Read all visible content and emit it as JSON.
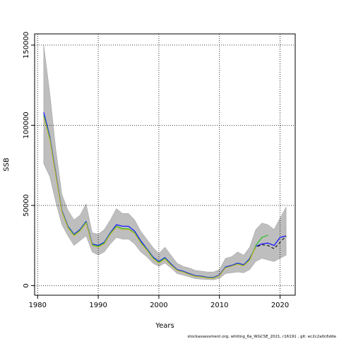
{
  "chart_data": {
    "type": "line",
    "xlabel": "Years",
    "ylabel": "SSB",
    "xlim": [
      1979.5,
      2022.5
    ],
    "ylim": [
      -6000,
      157000
    ],
    "x_ticks": [
      1980,
      1990,
      2000,
      2010,
      2020
    ],
    "y_ticks": [
      0,
      50000,
      100000,
      150000
    ],
    "x_tick_labels": [
      "1980",
      "1990",
      "2000",
      "2010",
      "2020"
    ],
    "y_tick_labels": [
      "0",
      "50000",
      "100000",
      "150000"
    ],
    "grid": true,
    "legend": "none",
    "footer": "stockassessment.org, whiting_6a_WGCSE_2021, r16191 , git: ec2c2a0c6dde",
    "band": {
      "x": [
        1981,
        1982,
        1983,
        1984,
        1985,
        1986,
        1987,
        1988,
        1989,
        1990,
        1991,
        1992,
        1993,
        1994,
        1995,
        1996,
        1997,
        1998,
        1999,
        2000,
        2001,
        2002,
        2003,
        2004,
        2005,
        2006,
        2007,
        2008,
        2009,
        2010,
        2011,
        2012,
        2013,
        2014,
        2015,
        2016,
        2017,
        2018,
        2019,
        2020,
        2021
      ],
      "upper": [
        150000,
        120000,
        85000,
        57000,
        47000,
        41000,
        44000,
        51000,
        33000,
        32000,
        35000,
        41000,
        48000,
        45000,
        45000,
        41000,
        34000,
        29000,
        24000,
        20000,
        24000,
        19000,
        14000,
        12000,
        11000,
        9500,
        9000,
        8500,
        8500,
        10000,
        17000,
        18000,
        21000,
        19000,
        24000,
        35000,
        39000,
        38000,
        35000,
        42000,
        49000
      ],
      "lower": [
        76000,
        68000,
        52000,
        38000,
        31000,
        25000,
        28000,
        31000,
        21000,
        19000,
        21000,
        26000,
        30000,
        29000,
        29000,
        26000,
        21000,
        18000,
        14000,
        12000,
        14000,
        11000,
        7500,
        6500,
        5500,
        4300,
        4000,
        3800,
        3600,
        4500,
        7500,
        8000,
        8500,
        8000,
        10000,
        15000,
        17000,
        16000,
        15000,
        17000,
        19000
      ]
    },
    "series": [
      {
        "color": "#1a1aff",
        "width": 1.3,
        "dash": "",
        "x": [
          1981,
          1982,
          1983,
          1984,
          1985,
          1986,
          1987,
          1988,
          1989,
          1990,
          1991,
          1992,
          1993,
          1994,
          1995,
          1996,
          1997,
          1998,
          1999,
          2000,
          2001,
          2002,
          2003,
          2004,
          2005,
          2006,
          2007,
          2008,
          2009,
          2010,
          2011,
          2012,
          2013,
          2014,
          2015,
          2016,
          2017,
          2018,
          2019,
          2020,
          2021
        ],
        "y": [
          108000,
          93000,
          70000,
          47000,
          37000,
          32000,
          35000,
          40000,
          26000,
          25000,
          27000,
          33000,
          38000,
          37000,
          37000,
          34000,
          28000,
          23000,
          18000,
          15000,
          17500,
          13500,
          10000,
          9000,
          7500,
          6200,
          5800,
          5200,
          5000,
          6600,
          11600,
          12600,
          14000,
          13000,
          16800,
          24500,
          26000,
          26500,
          25000,
          30000,
          31000
        ]
      },
      {
        "color": "#1a1a1a",
        "width": 1.2,
        "dash": "4,3",
        "x": [
          2015,
          2016,
          2017,
          2018,
          2019,
          2020,
          2021
        ],
        "y": [
          16800,
          24000,
          25500,
          25000,
          23000,
          27000,
          31000
        ]
      },
      {
        "color": "#30c230",
        "width": 1.3,
        "dash": "",
        "x": [
          1981,
          1982,
          1983,
          1984,
          1985,
          1986,
          1987,
          1988,
          1989,
          1990,
          1991,
          1992,
          1993,
          1994,
          1995,
          1996,
          1997,
          1998,
          1999,
          2000,
          2001,
          2002,
          2003,
          2004,
          2005,
          2006,
          2007,
          2008,
          2009,
          2010,
          2011,
          2012,
          2013,
          2014,
          2015,
          2016,
          2017,
          2018
        ],
        "y": [
          106000,
          92000,
          69000,
          46500,
          36500,
          31500,
          34500,
          39500,
          25500,
          24500,
          26500,
          32500,
          37000,
          35500,
          35500,
          33000,
          27000,
          22500,
          17500,
          14500,
          17000,
          13000,
          9600,
          8600,
          7100,
          5900,
          5500,
          4900,
          4700,
          6300,
          11200,
          12200,
          13500,
          12500,
          16200,
          25000,
          30000,
          31500
        ]
      },
      {
        "color": "#c9b23c",
        "width": 1.2,
        "dash": "",
        "x": [
          1981,
          1982,
          1983,
          1984,
          1985,
          1986,
          1987,
          1988,
          1989,
          1990,
          1991,
          1992,
          1993,
          1994,
          1995,
          1996,
          1997,
          1998,
          1999,
          2000,
          2001,
          2002,
          2003,
          2004,
          2005,
          2006,
          2007,
          2008,
          2009,
          2010,
          2011,
          2012,
          2013,
          2014,
          2015,
          2016
        ],
        "y": [
          105000,
          91000,
          68500,
          46000,
          36000,
          31000,
          34000,
          39000,
          25000,
          24000,
          26000,
          32000,
          36500,
          35000,
          35000,
          32500,
          26500,
          22000,
          17000,
          14000,
          16500,
          12700,
          9400,
          8400,
          6900,
          5700,
          5300,
          4700,
          4500,
          6100,
          11000,
          12000,
          13300,
          12300,
          15800,
          24200
        ]
      }
    ]
  }
}
